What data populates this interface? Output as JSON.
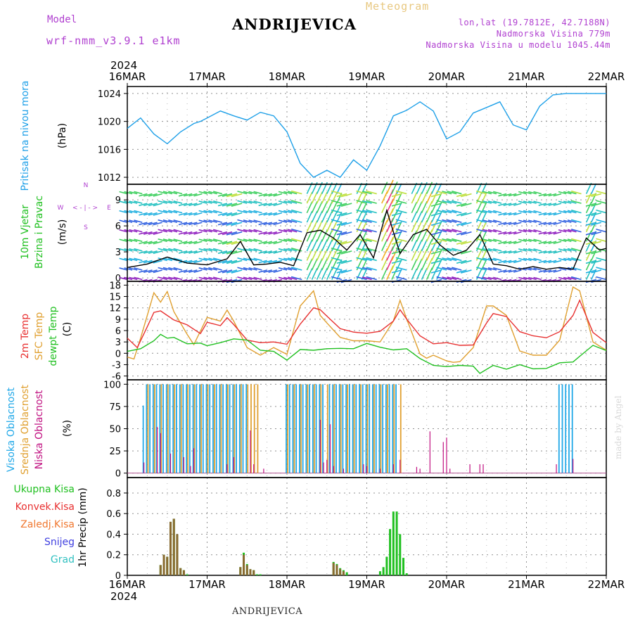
{
  "header": {
    "station": "ANDRIJEVICA",
    "model_label": "Model",
    "model_name": "wrf-nmm_v3.9.1 e1km",
    "product_label": "Meteogram",
    "lonlat": "lon,lat (19.7812E, 42.7188N)",
    "altitude": "Nadmorska Visina 779m",
    "model_altitude": "Nadmorska Visina u modelu 1045.44m",
    "footer_station": "ANDRIJEVICA",
    "watermark": "made by Angel"
  },
  "time_axis": {
    "year": "2024",
    "labels": [
      "16MAR",
      "17MAR",
      "18MAR",
      "19MAR",
      "20MAR",
      "21MAR",
      "22MAR"
    ],
    "hours_total": 144
  },
  "colors": {
    "pressure": "#1ea0e8",
    "temp2m": "#e83030",
    "sfc_temp": "#e0a030",
    "dewpt": "#20c020",
    "cloud_high": "#20a8e8",
    "cloud_mid": "#e0a030",
    "cloud_low": "#c01080",
    "precip_total": "#20c020",
    "precip_conv": "#e83030",
    "grid": "#909090"
  },
  "panels": {
    "pressure": {
      "ylabel_name": "Pritisak na nivou mora",
      "ylabel_unit": "(hPa)"
    },
    "wind": {
      "ylabel_name_1": "10m Vjetar",
      "ylabel_name_2": "Brzina i Pravac",
      "ylabel_unit": "(m/s)",
      "compass_n": "N",
      "compass_w": "W",
      "compass_e": "E",
      "compass_s": "S",
      "compass_arrows": "< - | - >"
    },
    "temp": {
      "ylabel_1": "2m Temp",
      "ylabel_2": "SFC Temp",
      "ylabel_3": "dewpt Temp",
      "ylabel_unit": "(C)"
    },
    "cloud": {
      "ylabel_1": "Visoka Oblacnost",
      "ylabel_2": "Srednja Oblacnost",
      "ylabel_3": "Niska Oblacnost",
      "ylabel_unit": "(%)"
    },
    "precip": {
      "legend": [
        {
          "label": "Ukupna Kisa",
          "color": "#20c020"
        },
        {
          "label": "Konvek.Kisa",
          "color": "#e83030"
        },
        {
          "label": "Zaledj.Kisa",
          "color": "#f07830"
        },
        {
          "label": "Snijeg",
          "color": "#4040e0"
        },
        {
          "label": "Grad",
          "color": "#30c0c0"
        }
      ],
      "ylabel": "1hr Precip (mm)"
    }
  },
  "chart_data": [
    {
      "type": "line",
      "panel": "pressure",
      "series": [
        {
          "x": [
            0,
            4,
            8,
            12,
            16,
            20,
            22,
            24,
            28,
            32,
            36,
            40,
            44,
            48,
            52,
            56,
            60,
            64,
            68,
            72,
            76,
            80,
            84,
            88,
            92,
            96,
            100,
            104,
            108,
            112,
            116,
            120,
            124,
            128,
            132,
            136,
            140,
            144
          ],
          "y": [
            1019,
            1020.5,
            1018.2,
            1016.8,
            1018.5,
            1019.7,
            1020,
            1020.5,
            1021.5,
            1020.8,
            1020.2,
            1021.3,
            1020.8,
            1018.5,
            1014,
            1012,
            1013,
            1012,
            1014.5,
            1013,
            1016.5,
            1020.8,
            1021.6,
            1022.8,
            1021.5,
            1017.5,
            1018.5,
            1021.2,
            1022,
            1022.8,
            1019.5,
            1018.8,
            1022.2,
            1023.8,
            1024,
            1024,
            1024,
            1024
          ]
        }
      ],
      "ylim": [
        1011,
        1025
      ],
      "yticks": [
        1012,
        1016,
        1020,
        1024
      ]
    },
    {
      "type": "line",
      "panel": "wind",
      "series": [
        {
          "name": "wind_speed",
          "x": [
            0,
            6,
            12,
            18,
            24,
            30,
            34,
            38,
            42,
            46,
            50,
            54,
            58,
            62,
            66,
            70,
            74,
            78,
            82,
            86,
            90,
            94,
            98,
            102,
            106,
            110,
            114,
            118,
            122,
            126,
            130,
            134,
            138,
            142,
            144
          ],
          "y": [
            1.2,
            1.6,
            2.4,
            1.7,
            1.5,
            2.2,
            4.2,
            1.5,
            1.6,
            1.8,
            1.4,
            5.2,
            5.5,
            4.6,
            3.2,
            5.0,
            2.3,
            7.8,
            2.8,
            5.0,
            5.6,
            3.8,
            2.6,
            3.2,
            5.0,
            1.6,
            1.4,
            1.0,
            1.3,
            1.0,
            1.2,
            1.0,
            4.6,
            3.2,
            3.4
          ]
        }
      ],
      "ylim": [
        -0.4,
        10.8
      ],
      "yticks": [
        0,
        3,
        6,
        9
      ]
    },
    {
      "type": "line",
      "panel": "temperature",
      "series": [
        {
          "name": "2m Temp",
          "x": [
            0,
            3,
            6,
            8,
            10,
            12,
            14,
            18,
            22,
            24,
            28,
            30,
            32,
            36,
            40,
            44,
            48,
            52,
            56,
            58,
            60,
            64,
            68,
            72,
            76,
            80,
            82,
            84,
            88,
            92,
            96,
            100,
            104,
            108,
            110,
            114,
            118,
            122,
            126,
            130,
            134,
            136,
            140,
            144
          ],
          "y": [
            4,
            1.5,
            7,
            10.8,
            11.2,
            10,
            8.8,
            7.5,
            5.2,
            8.2,
            7.3,
            9.4,
            7.6,
            3.5,
            2.8,
            3,
            2.4,
            7.7,
            12,
            11.5,
            9.8,
            6.5,
            5.6,
            5.3,
            5.8,
            8.5,
            11.5,
            9,
            4.6,
            2.5,
            2.8,
            2.1,
            2.2,
            8,
            10.5,
            9.7,
            5.7,
            4.6,
            4.1,
            5.7,
            10,
            14,
            5.5,
            2.8
          ]
        },
        {
          "name": "SFC Temp",
          "x": [
            0,
            2,
            4,
            6,
            8,
            10,
            12,
            14,
            18,
            20,
            24,
            28,
            30,
            32,
            36,
            40,
            44,
            48,
            52,
            56,
            58,
            60,
            64,
            68,
            72,
            76,
            80,
            82,
            84,
            88,
            90,
            92,
            96,
            98,
            100,
            104,
            108,
            110,
            114,
            118,
            122,
            126,
            130,
            134,
            136,
            140,
            144
          ],
          "y": [
            -1,
            -1.5,
            4,
            10,
            16,
            13.5,
            16.3,
            11,
            5,
            2.3,
            9.5,
            8.5,
            11.4,
            8.5,
            1.5,
            -0.5,
            1.5,
            -0.3,
            12.5,
            16.5,
            10,
            8,
            4.2,
            3.3,
            3.3,
            3,
            8.5,
            14,
            9,
            -0.2,
            -1.3,
            -0.5,
            -2,
            -2.4,
            -2.2,
            1.5,
            12.5,
            12.5,
            10,
            0.6,
            -0.5,
            -0.5,
            3.5,
            17.5,
            16.5,
            3,
            0.8
          ]
        },
        {
          "name": "dewpt Temp",
          "x": [
            0,
            4,
            8,
            10,
            12,
            14,
            18,
            22,
            24,
            28,
            32,
            36,
            40,
            44,
            48,
            52,
            56,
            60,
            64,
            68,
            72,
            76,
            80,
            84,
            88,
            92,
            96,
            100,
            104,
            106,
            110,
            114,
            118,
            122,
            126,
            130,
            134,
            136,
            140,
            144
          ],
          "y": [
            0.5,
            1.2,
            3.3,
            5,
            4,
            4.2,
            2.5,
            2.7,
            2,
            2.8,
            3.8,
            3.5,
            0.8,
            0.5,
            -1.8,
            1,
            0.8,
            1.2,
            1.3,
            1.2,
            2.6,
            1.6,
            0.9,
            1.2,
            -1.4,
            -3.2,
            -3.5,
            -3.2,
            -3.4,
            -5.3,
            -3.2,
            -4.2,
            -3,
            -4.1,
            -4,
            -2.5,
            -2.3,
            -0.8,
            2.1,
            0.7
          ]
        }
      ],
      "ylim": [
        -7,
        19
      ],
      "yticks": [
        -6,
        -3,
        0,
        3,
        6,
        9,
        12,
        15,
        18
      ]
    },
    {
      "type": "bar",
      "panel": "cloud",
      "ylim": [
        -5,
        105
      ],
      "yticks": [
        0,
        25,
        50,
        75,
        100
      ],
      "series": [
        {
          "name": "Visoka Oblacnost",
          "x": [
            5,
            6,
            7,
            8,
            9,
            10,
            11,
            12,
            13,
            14,
            15,
            16,
            17,
            18,
            19,
            20,
            21,
            22,
            23,
            24,
            25,
            26,
            27,
            28,
            29,
            30,
            31,
            32,
            33,
            34,
            35,
            36,
            48,
            49,
            50,
            51,
            52,
            53,
            54,
            55,
            56,
            57,
            58,
            59,
            61,
            62,
            63,
            64,
            65,
            66,
            67,
            68,
            69,
            70,
            71,
            72,
            73,
            74,
            75,
            76,
            77,
            78,
            79,
            80,
            81,
            130,
            131,
            132,
            133,
            134
          ],
          "y": [
            76,
            100,
            100,
            100,
            100,
            100,
            100,
            100,
            100,
            100,
            100,
            100,
            100,
            100,
            100,
            100,
            100,
            100,
            100,
            100,
            100,
            100,
            100,
            100,
            100,
            100,
            100,
            100,
            100,
            100,
            100,
            100,
            100,
            100,
            100,
            100,
            100,
            100,
            100,
            100,
            100,
            100,
            100,
            100,
            100,
            100,
            100,
            100,
            100,
            100,
            100,
            100,
            100,
            100,
            100,
            100,
            100,
            100,
            100,
            100,
            100,
            100,
            100,
            100,
            100,
            100,
            100,
            100,
            100,
            100
          ]
        },
        {
          "name": "Srednja Oblacnost",
          "x": [
            6,
            8,
            10,
            12,
            14,
            16,
            18,
            20,
            22,
            24,
            26,
            28,
            30,
            32,
            34,
            36,
            37,
            38,
            39,
            48,
            50,
            52,
            54,
            56,
            58,
            60,
            62,
            64,
            66,
            68,
            70,
            72,
            74,
            76,
            78,
            80,
            82
          ],
          "y": [
            100,
            100,
            100,
            100,
            100,
            100,
            100,
            100,
            100,
            100,
            100,
            100,
            100,
            100,
            100,
            100,
            100,
            100,
            100,
            100,
            100,
            100,
            100,
            100,
            100,
            100,
            100,
            100,
            100,
            100,
            100,
            100,
            100,
            100,
            100,
            100,
            100
          ]
        },
        {
          "name": "Niska Oblacnost",
          "x": [
            5,
            9,
            10,
            13,
            17,
            19,
            20,
            30,
            32,
            37,
            38,
            41,
            58,
            59,
            60,
            61,
            62,
            65,
            71,
            72,
            76,
            80,
            82,
            87,
            88,
            91,
            95,
            96,
            97,
            103,
            106,
            107,
            129,
            134
          ],
          "y": [
            12,
            52,
            45,
            22,
            18,
            8,
            28,
            10,
            18,
            48,
            10,
            5,
            60,
            12,
            15,
            55,
            8,
            5,
            10,
            8,
            5,
            10,
            15,
            7,
            5,
            47,
            35,
            40,
            5,
            10,
            10,
            10,
            10,
            16
          ]
        }
      ]
    },
    {
      "type": "bar",
      "panel": "precipitation",
      "ylim": [
        0,
        0.95
      ],
      "yticks": [
        0,
        0.2,
        0.4,
        0.6,
        0.8
      ],
      "series": [
        {
          "name": "Ukupna Kisa",
          "x": [
            10,
            11,
            12,
            13,
            14,
            15,
            16,
            17,
            18,
            34,
            35,
            36,
            37,
            38,
            39,
            40,
            62,
            63,
            64,
            65,
            66,
            76,
            77,
            78,
            79,
            80,
            81,
            82,
            83,
            84
          ],
          "y": [
            0.1,
            0.2,
            0.18,
            0.52,
            0.55,
            0.4,
            0.07,
            0.05,
            0.01,
            0.08,
            0.22,
            0.11,
            0.06,
            0.05,
            0.01,
            0.01,
            0.13,
            0.11,
            0.07,
            0.05,
            0.03,
            0.04,
            0.08,
            0.18,
            0.45,
            0.62,
            0.62,
            0.4,
            0.17,
            0.02
          ]
        },
        {
          "name": "Konvek.Kisa",
          "x": [
            10,
            11,
            12,
            13,
            14,
            15,
            16,
            17,
            34,
            35,
            36,
            37,
            38,
            62,
            63,
            64,
            65
          ],
          "y": [
            0.1,
            0.2,
            0.18,
            0.52,
            0.55,
            0.4,
            0.07,
            0.05,
            0.08,
            0.2,
            0.1,
            0.06,
            0.05,
            0.12,
            0.1,
            0.06,
            0.04
          ]
        }
      ]
    }
  ]
}
